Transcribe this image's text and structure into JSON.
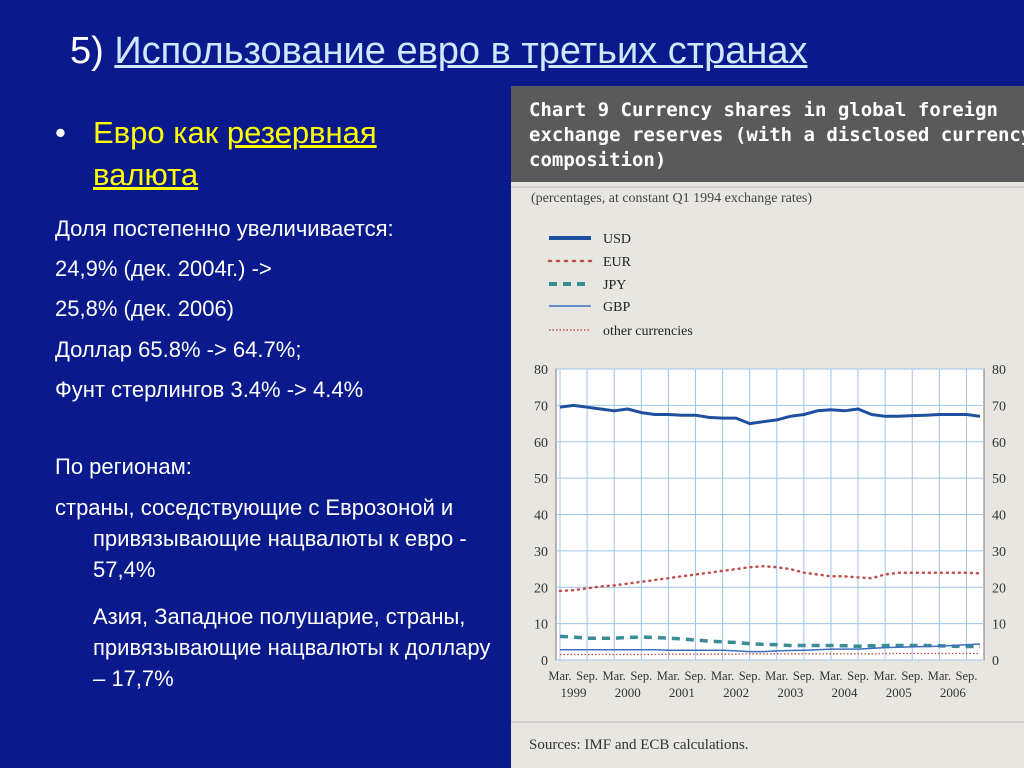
{
  "slide": {
    "title_num": "5)",
    "title_text": "Использование евро в третьих странах",
    "bullet_prefix": "Евро как ",
    "bullet_link_1": "резервная",
    "bullet_link_2": "валюта",
    "lines": [
      "Доля постепенно увеличивается:",
      "24,9% (дек. 2004г.) ->",
      "25,8% (дек. 2006)",
      "Доллар 65.8% -> 64.7%;",
      "Фунт стерлингов 3.4% -> 4.4%"
    ],
    "regions_title": "По регионам:",
    "region_1": " страны, соседствующие с Еврозоной и привязывающие нацвалюты к евро - 57,4%",
    "region_2": "Азия, Западное полушарие, страны, привязывающие нацвалюты к доллару – 17,7%"
  },
  "colors": {
    "background": "#0a1a8c",
    "bullet_text": "#ffff00",
    "panel": "#e8e6e1",
    "header": "#5a5a5a",
    "usd": "#1f4f9f",
    "eur": "#c0504d",
    "jpy": "#3a8c96",
    "gbp": "#3e6fbf",
    "other": "#c0504d"
  },
  "chart_data": {
    "type": "line",
    "title_line_1": "Chart 9 Currency shares in global foreign",
    "title_line_2": "exchange reserves (with a disclosed currency",
    "title_line_3": "composition)",
    "subtitle": "(percentages, at constant Q1 1994 exchange rates)",
    "source": "Sources: IMF and ECB calculations.",
    "ylim": [
      0,
      80
    ],
    "yticks": [
      0,
      10,
      20,
      30,
      40,
      50,
      60,
      70,
      80
    ],
    "tick_months": [
      "Mar.",
      "Sep."
    ],
    "years": [
      "1999",
      "2000",
      "2001",
      "2002",
      "2003",
      "2004",
      "2005",
      "2006"
    ],
    "x": [
      "Mar. 1999",
      "Jun. 1999",
      "Sep. 1999",
      "Dec. 1999",
      "Mar. 2000",
      "Jun. 2000",
      "Sep. 2000",
      "Dec. 2000",
      "Mar. 2001",
      "Jun. 2001",
      "Sep. 2001",
      "Dec. 2001",
      "Mar. 2002",
      "Jun. 2002",
      "Sep. 2002",
      "Dec. 2002",
      "Mar. 2003",
      "Jun. 2003",
      "Sep. 2003",
      "Dec. 2003",
      "Mar. 2004",
      "Jun. 2004",
      "Sep. 2004",
      "Dec. 2004",
      "Mar. 2005",
      "Jun. 2005",
      "Sep. 2005",
      "Dec. 2005",
      "Mar. 2006",
      "Jun. 2006",
      "Sep. 2006",
      "Dec. 2006"
    ],
    "grid": true,
    "legend_placement": "top-left",
    "series": [
      {
        "name": "USD",
        "style": "solid-thick",
        "color": "#1f4f9f",
        "values": [
          69.5,
          70,
          69.5,
          69,
          68.5,
          69,
          68,
          67.5,
          67.5,
          67.3,
          67.3,
          66.7,
          66.5,
          66.5,
          65,
          65.5,
          66,
          67,
          67.5,
          68.5,
          68.8,
          68.5,
          69,
          67.5,
          67,
          67,
          67.2,
          67.3,
          67.5,
          67.5,
          67.5,
          67
        ]
      },
      {
        "name": "EUR",
        "style": "dotted",
        "color": "#c0504d",
        "values": [
          19,
          19.2,
          19.7,
          20.2,
          20.5,
          21,
          21.5,
          22,
          22.5,
          23,
          23.5,
          24,
          24.5,
          25,
          25.5,
          25.8,
          25.5,
          25,
          24,
          23.5,
          23,
          23,
          22.7,
          22.5,
          23.5,
          24,
          24,
          24,
          24,
          24,
          24,
          23.8
        ]
      },
      {
        "name": "JPY",
        "style": "dashed-thick",
        "color": "#3a8c96",
        "values": [
          6.5,
          6.3,
          6,
          6,
          6,
          6.2,
          6.3,
          6.2,
          6,
          5.8,
          5.5,
          5.2,
          5,
          4.8,
          4.5,
          4.3,
          4.2,
          4,
          4,
          4,
          4,
          3.9,
          3.8,
          3.9,
          4,
          4,
          4,
          4,
          3.9,
          3.8,
          3.7,
          3.7
        ]
      },
      {
        "name": "GBP",
        "style": "solid-thin",
        "color": "#3e6fbf",
        "values": [
          2.8,
          2.8,
          2.8,
          2.8,
          2.8,
          2.8,
          2.8,
          2.8,
          2.7,
          2.7,
          2.7,
          2.7,
          2.7,
          2.5,
          2.3,
          2.3,
          2.5,
          2.6,
          2.7,
          2.8,
          3,
          3,
          3,
          3.2,
          3.4,
          3.5,
          3.6,
          3.7,
          3.8,
          4,
          4.2,
          4.4
        ]
      },
      {
        "name": "other currencies",
        "style": "dotted-thin",
        "color": "#c0504d",
        "values": [
          1.5,
          1.5,
          1.5,
          1.5,
          1.5,
          1.5,
          1.5,
          1.5,
          1.6,
          1.6,
          1.6,
          1.6,
          1.6,
          1.6,
          1.7,
          1.7,
          1.7,
          1.7,
          1.7,
          1.7,
          1.7,
          1.7,
          1.7,
          1.7,
          1.8,
          1.8,
          1.8,
          1.8,
          1.8,
          1.8,
          1.8,
          1.8
        ]
      }
    ]
  }
}
